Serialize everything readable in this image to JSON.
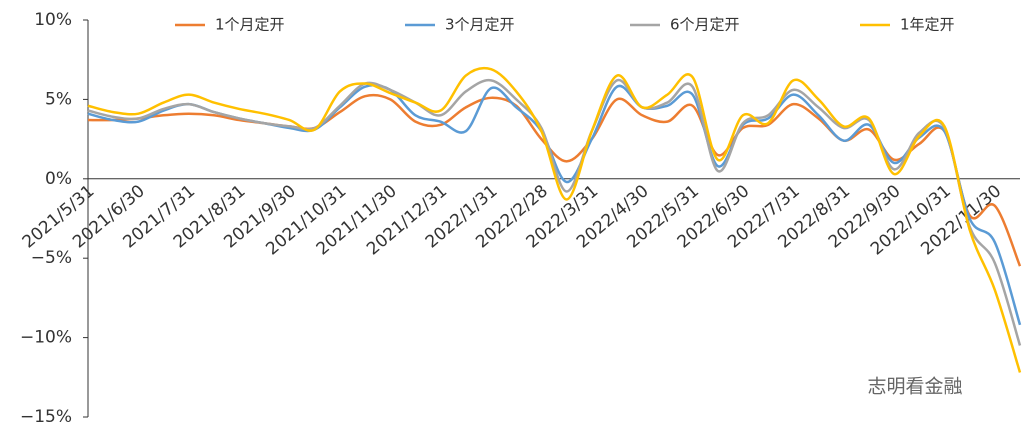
{
  "chart_data": {
    "type": "line",
    "categories": [
      "2021/5/31",
      null,
      "2021/6/30",
      null,
      "2021/7/31",
      null,
      "2021/8/31",
      null,
      "2021/9/30",
      null,
      "2021/10/31",
      null,
      "2021/11/30",
      null,
      "2021/12/31",
      null,
      "2022/1/31",
      null,
      "2022/2/28",
      null,
      "2022/3/31",
      null,
      "2022/4/30",
      null,
      "2022/5/31",
      null,
      "2022/6/30",
      null,
      "2022/7/31",
      null,
      "2022/8/31",
      null,
      "2022/9/30",
      null,
      "2022/10/31",
      null,
      "2022/11/30",
      null
    ],
    "series": [
      {
        "name": "1个月定开",
        "color": "#ed7d31",
        "values": [
          3.7,
          3.7,
          3.8,
          4.0,
          4.1,
          4.0,
          3.7,
          3.5,
          3.3,
          3.2,
          4.2,
          5.2,
          5.0,
          3.6,
          3.4,
          4.5,
          5.1,
          4.6,
          2.5,
          1.1,
          2.5,
          5.0,
          4.0,
          3.6,
          4.6,
          1.5,
          3.2,
          3.4,
          4.7,
          3.8,
          2.4,
          3.1,
          1.2,
          2.2,
          3.0,
          -2.3,
          -1.7,
          -5.5
        ]
      },
      {
        "name": "3个月定开",
        "color": "#5b9bd5",
        "values": [
          4.1,
          3.7,
          3.6,
          4.3,
          4.7,
          4.2,
          3.8,
          3.5,
          3.2,
          3.1,
          4.5,
          5.8,
          5.6,
          4.0,
          3.6,
          3.0,
          5.7,
          4.5,
          3.0,
          -0.2,
          2.5,
          5.8,
          4.5,
          4.6,
          5.3,
          0.8,
          3.4,
          3.8,
          5.3,
          4.0,
          2.4,
          3.4,
          1.0,
          2.6,
          3.0,
          -2.5,
          -4.0,
          -9.2
        ]
      },
      {
        "name": "6个月定开",
        "color": "#a5a5a5",
        "values": [
          4.3,
          3.9,
          3.8,
          4.4,
          4.7,
          4.2,
          3.8,
          3.5,
          3.3,
          3.2,
          4.6,
          6.0,
          5.6,
          4.8,
          4.0,
          5.5,
          6.2,
          5.0,
          3.2,
          -0.8,
          3.0,
          6.2,
          4.5,
          4.8,
          5.8,
          0.5,
          3.5,
          4.0,
          5.6,
          4.5,
          3.2,
          3.7,
          0.6,
          2.9,
          3.2,
          -3.0,
          -5.3,
          -10.5
        ]
      },
      {
        "name": "1年定开",
        "color": "#ffc000",
        "values": [
          4.6,
          4.2,
          4.1,
          4.8,
          5.3,
          4.8,
          4.4,
          4.1,
          3.7,
          3.1,
          5.5,
          6.0,
          5.4,
          4.8,
          4.3,
          6.5,
          6.9,
          5.5,
          3.0,
          -1.3,
          3.0,
          6.5,
          4.5,
          5.3,
          6.4,
          1.2,
          4.0,
          3.5,
          6.2,
          5.0,
          3.3,
          3.8,
          0.3,
          2.7,
          3.3,
          -3.2,
          -7.0,
          -12.2
        ]
      }
    ],
    "ylim": [
      -15,
      10
    ],
    "yticks": [
      {
        "value": -15,
        "label": "−15%"
      },
      {
        "value": -10,
        "label": "−10%"
      },
      {
        "value": -5,
        "label": "−5%"
      },
      {
        "value": 0,
        "label": "0%"
      },
      {
        "value": 5,
        "label": "5%"
      },
      {
        "value": 10,
        "label": "10%"
      }
    ],
    "watermark": "志明看金融"
  }
}
